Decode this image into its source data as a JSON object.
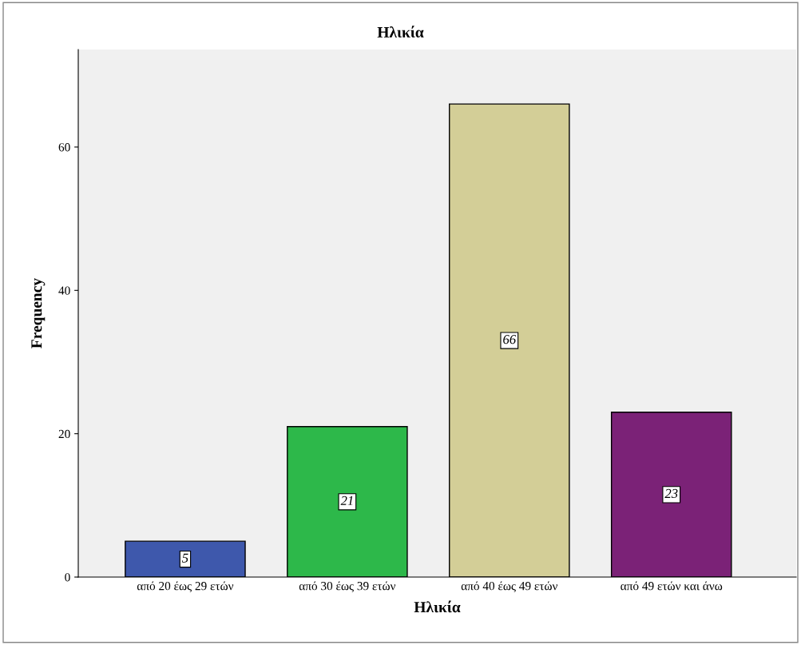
{
  "chart_data": {
    "type": "bar",
    "title": "Ηλικία",
    "xlabel": "Ηλικία",
    "ylabel": "Frequency",
    "categories": [
      "από 20 έως 29 ετών",
      "από 30 έως 39 ετών",
      "από 40 έως 49 ετών",
      "από 49 ετών και άνω"
    ],
    "values": [
      5,
      21,
      66,
      23
    ],
    "colors": [
      "#3e58ac",
      "#2db84a",
      "#d3ce97",
      "#7b2277"
    ],
    "ylim": [
      0,
      73.6
    ],
    "yticks": [
      0,
      20,
      40,
      60
    ],
    "grid": false,
    "data_labels": true
  }
}
